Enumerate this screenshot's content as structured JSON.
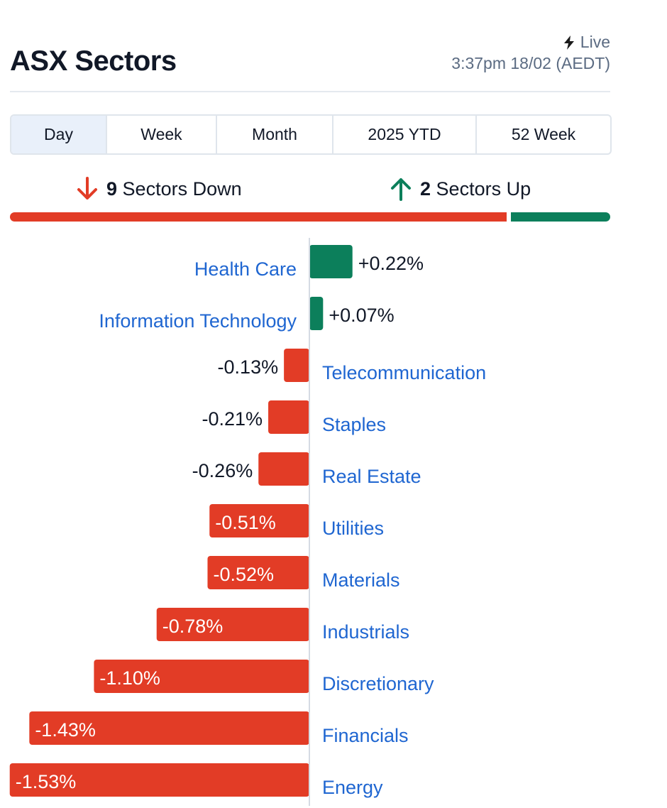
{
  "header": {
    "title": "ASX Sectors",
    "live_label": "Live",
    "timestamp": "3:37pm 18/02 (AEDT)"
  },
  "tabs": [
    {
      "label": "Day",
      "active": true
    },
    {
      "label": "Week",
      "active": false
    },
    {
      "label": "Month",
      "active": false
    },
    {
      "label": "2025 YTD",
      "active": false
    },
    {
      "label": "52 Week",
      "active": false
    }
  ],
  "summary": {
    "down_count": "9",
    "down_label": "Sectors Down",
    "up_count": "2",
    "up_label": "Sectors Up",
    "down_icon": "arrow-down-icon",
    "up_icon": "arrow-up-icon"
  },
  "colors": {
    "down": "#e23c26",
    "up": "#0c7f5b",
    "label": "#1f66d1",
    "axis": "#d5dbe3"
  },
  "chart_data": {
    "type": "bar",
    "orientation": "horizontal-diverging",
    "unit": "%",
    "categories": [
      "Health Care",
      "Information Technology",
      "Telecommunication",
      "Staples",
      "Real Estate",
      "Utilities",
      "Materials",
      "Industrials",
      "Discretionary",
      "Financials",
      "Energy"
    ],
    "values": [
      0.22,
      0.07,
      -0.13,
      -0.21,
      -0.26,
      -0.51,
      -0.52,
      -0.78,
      -1.1,
      -1.43,
      -1.53
    ],
    "value_labels": [
      "+0.22%",
      "+0.07%",
      "-0.13%",
      "-0.21%",
      "-0.26%",
      "-0.51%",
      "-0.52%",
      "-0.78%",
      "-1.10%",
      "-1.43%",
      "-1.53%"
    ],
    "grid": false,
    "legend": "none"
  }
}
